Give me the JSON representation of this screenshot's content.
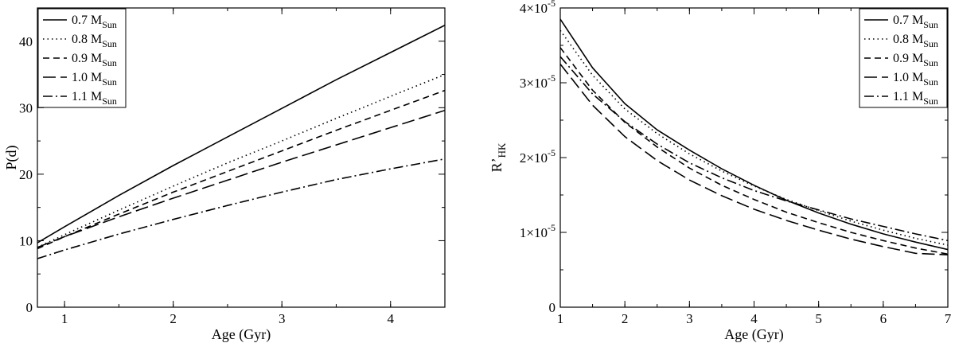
{
  "chart_data": [
    {
      "type": "line",
      "xlabel": "Age (Gyr)",
      "ylabel": "P(d)",
      "xlim": [
        0.75,
        4.5
      ],
      "ylim": [
        0,
        45
      ],
      "xticks": [
        {
          "v": 1,
          "label": "1"
        },
        {
          "v": 2,
          "label": "2"
        },
        {
          "v": 3,
          "label": "3"
        },
        {
          "v": 4,
          "label": "4"
        }
      ],
      "yticks": [
        {
          "v": 0,
          "label": "0"
        },
        {
          "v": 10,
          "label": "10"
        },
        {
          "v": 20,
          "label": "20"
        },
        {
          "v": 30,
          "label": "30"
        },
        {
          "v": 40,
          "label": "40"
        }
      ],
      "legend": {
        "placement": "top-left"
      },
      "series": [
        {
          "name": "0.7 M",
          "sub": "Sun",
          "dash": "solid",
          "x": [
            0.75,
            1.0,
            1.5,
            2.0,
            2.5,
            3.0,
            3.5,
            4.0,
            4.5
          ],
          "y": [
            9.7,
            12.1,
            16.8,
            21.3,
            25.6,
            29.9,
            34.2,
            38.3,
            42.4
          ]
        },
        {
          "name": "0.8 M",
          "sub": "Sun",
          "dash": "dotted",
          "x": [
            0.75,
            1.0,
            1.5,
            2.0,
            2.5,
            3.0,
            3.5,
            4.0,
            4.5
          ],
          "y": [
            9.0,
            10.9,
            14.6,
            18.2,
            21.7,
            25.0,
            28.4,
            31.7,
            35.0
          ]
        },
        {
          "name": "0.9 M",
          "sub": "Sun",
          "dash": "dashed",
          "x": [
            0.75,
            1.0,
            1.5,
            2.0,
            2.5,
            3.0,
            3.5,
            4.0,
            4.5
          ],
          "y": [
            8.8,
            10.6,
            14.0,
            17.3,
            20.4,
            23.5,
            26.6,
            29.6,
            32.6
          ]
        },
        {
          "name": "1.0 M",
          "sub": "Sun",
          "dash": "longdash",
          "x": [
            0.75,
            1.0,
            1.5,
            2.0,
            2.5,
            3.0,
            3.5,
            4.0,
            4.5
          ],
          "y": [
            9.0,
            10.6,
            13.6,
            16.4,
            19.1,
            21.8,
            24.4,
            27.0,
            29.6
          ]
        },
        {
          "name": "1.1 M",
          "sub": "Sun",
          "dash": "dashdot",
          "x": [
            0.75,
            1.0,
            1.5,
            2.0,
            2.5,
            3.0,
            3.5,
            4.0,
            4.5
          ],
          "y": [
            7.3,
            8.6,
            11.0,
            13.2,
            15.3,
            17.3,
            19.2,
            20.8,
            22.3
          ]
        }
      ]
    },
    {
      "type": "line",
      "xlabel": "Age (Gyr)",
      "ylabel": "R’",
      "ylabel_sub": "HK",
      "xlim": [
        1,
        7
      ],
      "ylim": [
        0,
        4e-05
      ],
      "xticks": [
        {
          "v": 1,
          "label": "1"
        },
        {
          "v": 2,
          "label": "2"
        },
        {
          "v": 3,
          "label": "3"
        },
        {
          "v": 4,
          "label": "4"
        },
        {
          "v": 5,
          "label": "5"
        },
        {
          "v": 6,
          "label": "6"
        },
        {
          "v": 7,
          "label": "7"
        }
      ],
      "yticks": [
        {
          "v": 0,
          "label": "0"
        },
        {
          "v": 1e-05,
          "label": "1×10",
          "sup": "-5"
        },
        {
          "v": 2e-05,
          "label": "2×10",
          "sup": "-5"
        },
        {
          "v": 3e-05,
          "label": "3×10",
          "sup": "-5"
        },
        {
          "v": 4e-05,
          "label": "4×10",
          "sup": "-5"
        }
      ],
      "legend": {
        "placement": "top-right"
      },
      "series": [
        {
          "name": "0.7 M",
          "sub": "Sun",
          "dash": "solid",
          "x": [
            1.0,
            1.5,
            2.0,
            2.5,
            3.0,
            3.5,
            4.0,
            4.5,
            5.0,
            5.5,
            6.0,
            6.5,
            7.0
          ],
          "y": [
            3.85e-05,
            3.2e-05,
            2.72e-05,
            2.37e-05,
            2.1e-05,
            1.85e-05,
            1.63e-05,
            1.43e-05,
            1.26e-05,
            1.11e-05,
            9.8e-06,
            8.7e-06,
            7.7e-06
          ]
        },
        {
          "name": "0.8 M",
          "sub": "Sun",
          "dash": "dotted",
          "x": [
            1.0,
            1.5,
            2.0,
            2.5,
            3.0,
            3.5,
            4.0,
            4.5,
            5.0,
            5.5,
            6.0,
            6.5,
            7.0
          ],
          "y": [
            3.7e-05,
            3.1e-05,
            2.65e-05,
            2.32e-05,
            2.05e-05,
            1.82e-05,
            1.62e-05,
            1.44e-05,
            1.29e-05,
            1.15e-05,
            1.03e-05,
            9.2e-06,
            8.3e-06
          ]
        },
        {
          "name": "0.9 M",
          "sub": "Sun",
          "dash": "dashed",
          "x": [
            1.0,
            1.5,
            2.0,
            2.5,
            3.0,
            3.5,
            4.0,
            4.5,
            5.0,
            5.5,
            6.0,
            6.5,
            7.0
          ],
          "y": [
            3.47e-05,
            2.9e-05,
            2.47e-05,
            2.14e-05,
            1.86e-05,
            1.63e-05,
            1.44e-05,
            1.27e-05,
            1.13e-05,
            1e-05,
            8.9e-06,
            7.9e-06,
            7.1e-06
          ]
        },
        {
          "name": "1.0 M",
          "sub": "Sun",
          "dash": "longdash",
          "x": [
            1.0,
            1.5,
            2.0,
            2.5,
            3.0,
            3.5,
            4.0,
            4.5,
            5.0,
            5.5,
            6.0,
            6.5,
            7.0
          ],
          "y": [
            3.25e-05,
            2.7e-05,
            2.28e-05,
            1.96e-05,
            1.7e-05,
            1.49e-05,
            1.31e-05,
            1.16e-05,
            1.03e-05,
            9.1e-06,
            8.1e-06,
            7.2e-06,
            7e-06
          ]
        },
        {
          "name": "1.1 M",
          "sub": "Sun",
          "dash": "dashdot",
          "x": [
            1.0,
            1.5,
            2.0,
            2.5,
            3.0,
            3.5,
            4.0,
            4.5,
            5.0,
            5.5,
            6.0,
            6.5,
            7.0
          ],
          "y": [
            3.35e-05,
            2.85e-05,
            2.48e-05,
            2.18e-05,
            1.93e-05,
            1.73e-05,
            1.56e-05,
            1.42e-05,
            1.3e-05,
            1.18e-05,
            1.08e-05,
            9.8e-06,
            8.9e-06
          ]
        }
      ]
    }
  ]
}
